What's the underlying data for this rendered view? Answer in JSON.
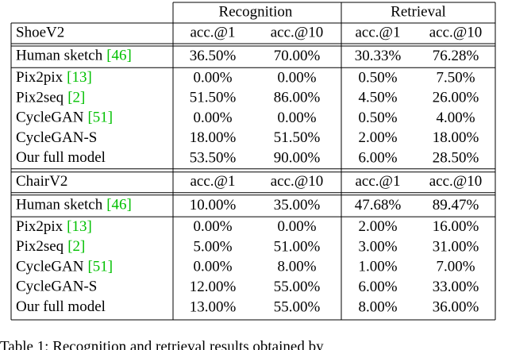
{
  "header": {
    "groups": [
      "Recognition",
      "Retrieval"
    ]
  },
  "sections": [
    {
      "name": "ShoeV2",
      "columns": [
        "acc.@1",
        "acc.@10",
        "acc.@1",
        "acc.@10"
      ],
      "rows": [
        {
          "label": "Human sketch",
          "cite": "[46]",
          "cells": [
            "36.50%",
            "70.00%",
            "30.33%",
            "76.28%"
          ]
        },
        {
          "label": "Pix2pix",
          "cite": "[13]",
          "cells": [
            "0.00%",
            "0.00%",
            "0.50%",
            "7.50%"
          ]
        },
        {
          "label": "Pix2seq",
          "cite": "[2]",
          "cells": [
            {
              "text": "51.50%",
              "color": "#0000ff"
            },
            {
              "text": "86.00%",
              "color": "#0000ff"
            },
            {
              "text": "4.50%",
              "color": "#0000ff"
            },
            {
              "text": "26.00%",
              "color": "#0000ff"
            }
          ]
        },
        {
          "label": "CycleGAN",
          "cite": "[51]",
          "cells": [
            "0.00%",
            "0.00%",
            "0.50%",
            "4.00%"
          ]
        },
        {
          "label": "CycleGAN-S",
          "cells": [
            "18.00%",
            "51.50%",
            "2.00%",
            "18.00%"
          ]
        },
        {
          "label": "Our full model",
          "cells": [
            {
              "text": "53.50%",
              "color": "#ff0000"
            },
            {
              "text": "90.00%",
              "color": "#ff0000"
            },
            {
              "text": "6.00%",
              "color": "#ff0000"
            },
            {
              "text": "28.50%",
              "color": "#ff0000"
            }
          ]
        }
      ]
    },
    {
      "name": "ChairV2",
      "columns": [
        "acc.@1",
        "acc.@10",
        "acc.@1",
        "acc.@10"
      ],
      "rows": [
        {
          "label": "Human sketch",
          "cite": "[46]",
          "cells": [
            "10.00%",
            "35.00%",
            "47.68%",
            "89.47%"
          ]
        },
        {
          "label": "Pix2pix",
          "cite": "[13]",
          "cells": [
            "0.00%",
            "0.00%",
            "2.00%",
            "16.00%"
          ]
        },
        {
          "label": "Pix2seq",
          "cite": "[2]",
          "cells": [
            "5.00%",
            {
              "text": "51.00%",
              "color": "#0000ff"
            },
            "3.00%",
            "31.00%"
          ]
        },
        {
          "label": "CycleGAN",
          "cite": "[51]",
          "cells": [
            "0.00%",
            "8.00%",
            "1.00%",
            "7.00%"
          ]
        },
        {
          "label": "CycleGAN-S",
          "cells": [
            {
              "text": "12.00%",
              "color": "#0000ff"
            },
            {
              "text": "55.00%",
              "color": "#ff0000"
            },
            {
              "text": "6.00%",
              "color": "#0000ff"
            },
            {
              "text": "33.00%",
              "color": "#0000ff"
            }
          ]
        },
        {
          "label": "Our full model",
          "cells": [
            {
              "text": "13.00%",
              "color": "#ff0000"
            },
            {
              "text": "55.00%",
              "color": "#ff0000"
            },
            {
              "text": "8.00%",
              "color": "#ff0000"
            },
            {
              "text": "36.00%",
              "color": "#ff0000"
            }
          ]
        }
      ]
    }
  ],
  "caption": "Table 1: Recognition and retrieval results obtained by"
}
